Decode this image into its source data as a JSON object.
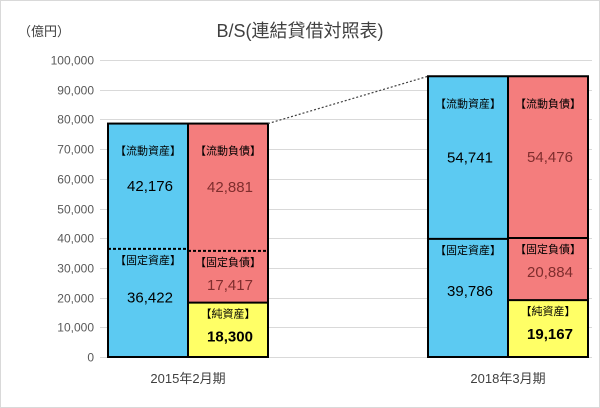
{
  "chart_data": {
    "type": "bar",
    "stacked": true,
    "title": "B/S(連結貸借対照表)",
    "ylabel": "（億円）",
    "ylim": [
      0,
      100000
    ],
    "ytick_labels": [
      "0",
      "10,000",
      "20,000",
      "30,000",
      "40,000",
      "50,000",
      "60,000",
      "70,000",
      "80,000",
      "90,000",
      "100,000"
    ],
    "grid": true,
    "categories": [
      "2015年2月期",
      "2018年3月期"
    ],
    "groups": [
      {
        "columns": [
          {
            "segments": [
              {
                "name": "【流動資産】",
                "value": 42176,
                "label": "42,176",
                "color": "#5ccaf2",
                "label_color": "#000000"
              },
              {
                "name": "【固定資産】",
                "value": 36422,
                "label": "36,422",
                "color": "#5ccaf2",
                "label_color": "#000000"
              }
            ]
          },
          {
            "segments": [
              {
                "name": "【流動負債】",
                "value": 42881,
                "label": "42,881",
                "color": "#f47d7d",
                "label_color": "#7f2d2d"
              },
              {
                "name": "【固定負債】",
                "value": 17417,
                "label": "17,417",
                "color": "#f47d7d",
                "label_color": "#7f2d2d"
              },
              {
                "name": "【純資産】",
                "value": 18300,
                "label": "18,300",
                "color": "#ffff66",
                "label_color": "#000000"
              }
            ]
          }
        ]
      },
      {
        "columns": [
          {
            "segments": [
              {
                "name": "【流動資産】",
                "value": 54741,
                "label": "54,741",
                "color": "#5ccaf2",
                "label_color": "#000000"
              },
              {
                "name": "【固定資産】",
                "value": 39786,
                "label": "39,786",
                "color": "#5ccaf2",
                "label_color": "#000000"
              }
            ]
          },
          {
            "segments": [
              {
                "name": "【流動負債】",
                "value": 54476,
                "label": "54,476",
                "color": "#f47d7d",
                "label_color": "#7f2d2d"
              },
              {
                "name": "【固定負債】",
                "value": 20884,
                "label": "20,884",
                "color": "#f47d7d",
                "label_color": "#7f2d2d"
              },
              {
                "name": "【純資産】",
                "value": 19167,
                "label": "19,167",
                "color": "#ffff66",
                "label_color": "#000000"
              }
            ]
          }
        ]
      }
    ]
  }
}
